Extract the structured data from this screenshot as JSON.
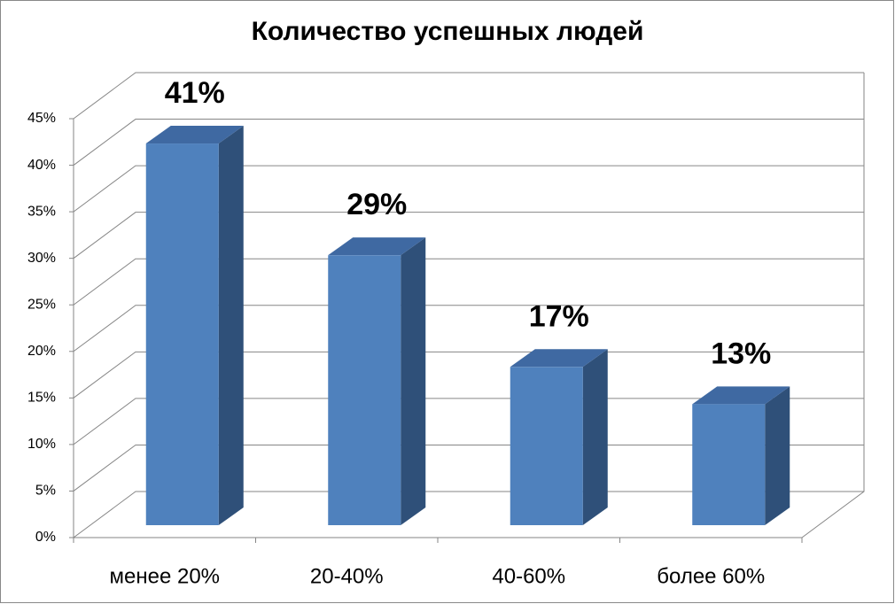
{
  "chart_data": {
    "type": "bar3d",
    "title": "Количество успешных людей",
    "categories": [
      "менее 20%",
      "20-40%",
      "40-60%",
      "более 60%"
    ],
    "values": [
      41,
      29,
      17,
      13
    ],
    "value_labels": [
      "41%",
      "29%",
      "17%",
      "13%"
    ],
    "color": "#4f81bd",
    "ylim": [
      0,
      45
    ],
    "yticks": [
      {
        "value": 0,
        "label": "0%"
      },
      {
        "value": 5,
        "label": "5%"
      },
      {
        "value": 10,
        "label": "10%"
      },
      {
        "value": 15,
        "label": "15%"
      },
      {
        "value": 20,
        "label": "20%"
      },
      {
        "value": 25,
        "label": "25%"
      },
      {
        "value": 30,
        "label": "30%"
      },
      {
        "value": 35,
        "label": "35%"
      },
      {
        "value": 40,
        "label": "40%"
      },
      {
        "value": 45,
        "label": "45%"
      }
    ],
    "grid": true
  }
}
